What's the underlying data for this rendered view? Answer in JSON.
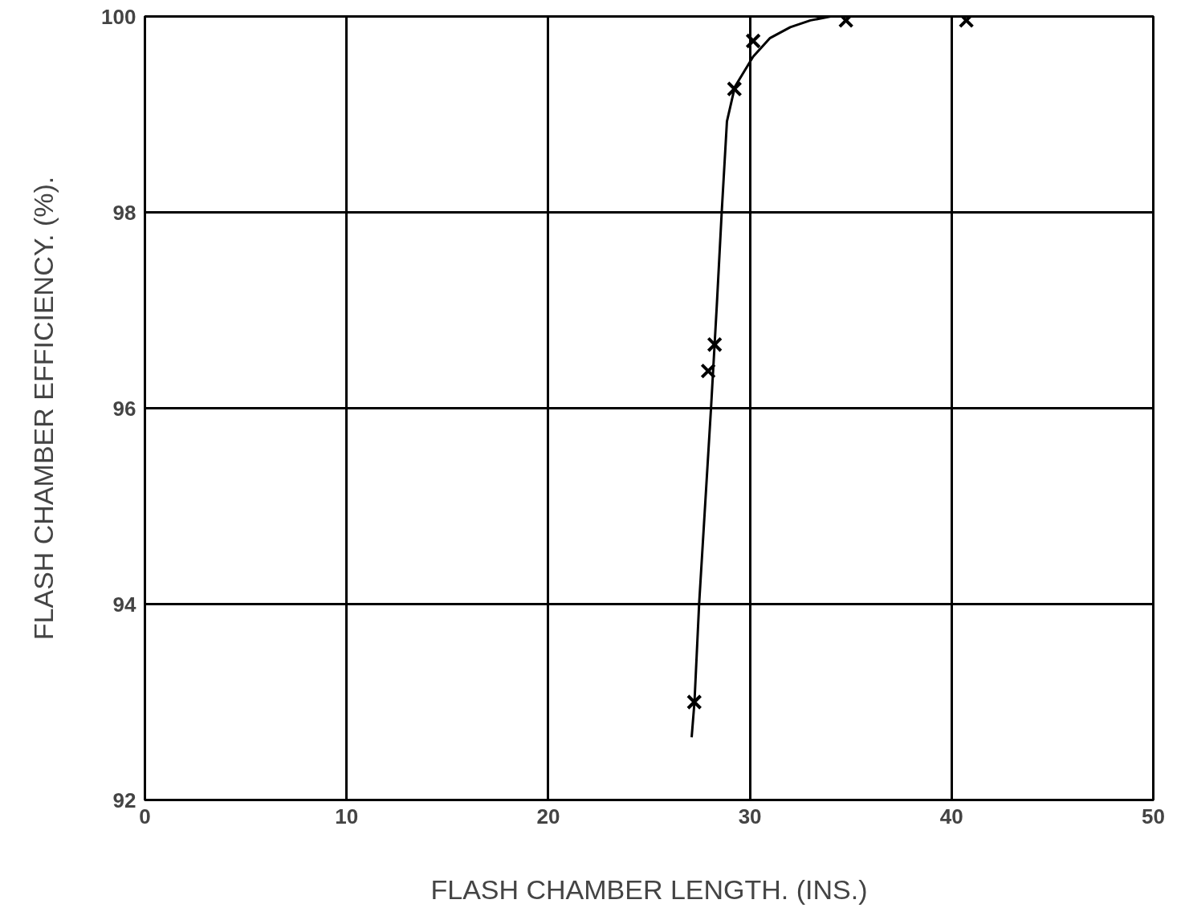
{
  "chart_data": {
    "type": "scatter",
    "xlabel": "FLASH CHAMBER LENGTH. (INS.)",
    "ylabel": "FLASH CHAMBER EFFICIENCY. (%).",
    "xlim": [
      0,
      50
    ],
    "ylim": [
      92,
      100
    ],
    "xticks": [
      0,
      10,
      20,
      30,
      40,
      50
    ],
    "yticks": [
      92,
      94,
      96,
      98,
      100
    ],
    "grid": true,
    "marker": "cross",
    "series": [
      {
        "color": "#000000",
        "x": [
          27.24,
          27.93,
          28.25,
          29.23,
          30.16,
          34.76,
          40.73
        ],
        "values": [
          93.0,
          96.38,
          96.65,
          99.26,
          99.75,
          99.96,
          99.96
        ]
      },
      {
        "type": "line",
        "color": "#000000",
        "marker": "none",
        "line_style": "solid",
        "x": [
          27.11,
          27.25,
          27.48,
          28.07,
          28.36,
          28.6,
          28.86,
          29.25,
          30.16,
          31.0,
          32.0,
          33.0,
          34.0
        ],
        "values": [
          92.64,
          93.0,
          94.0,
          96.0,
          97.06,
          98.0,
          98.93,
          99.28,
          99.59,
          99.78,
          99.89,
          99.96,
          100.0
        ]
      }
    ]
  }
}
